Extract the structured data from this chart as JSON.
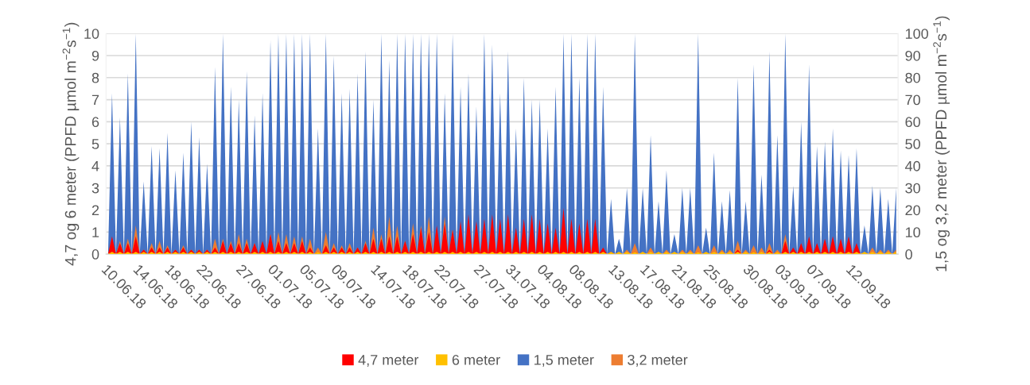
{
  "chart_data": {
    "type": "area",
    "categories": [
      "10.06.18",
      null,
      null,
      null,
      null,
      null,
      null,
      null,
      "14.06.18",
      null,
      null,
      null,
      null,
      null,
      null,
      null,
      "18.06.18",
      null,
      null,
      null,
      null,
      null,
      null,
      null,
      "22.06.18",
      null,
      null,
      null,
      null,
      null,
      null,
      null,
      null,
      null,
      "27.06.18",
      null,
      null,
      null,
      null,
      null,
      null,
      null,
      "01.07.18",
      null,
      null,
      null,
      null,
      null,
      null,
      null,
      "05.07.18",
      null,
      null,
      null,
      null,
      null,
      null,
      null,
      "09.07.18",
      null,
      null,
      null,
      null,
      null,
      null,
      null,
      null,
      null,
      "14.07.18",
      null,
      null,
      null,
      null,
      null,
      null,
      null,
      "18.07.18",
      null,
      null,
      null,
      null,
      null,
      null,
      null,
      "22.07.18",
      null,
      null,
      null,
      null,
      null,
      null,
      null,
      null,
      null,
      "27.07.18",
      null,
      null,
      null,
      null,
      null,
      null,
      null,
      "31.07.18",
      null,
      null,
      null,
      null,
      null,
      null,
      null,
      "04.08.18",
      null,
      null,
      null,
      null,
      null,
      null,
      null,
      "08.08.18",
      null,
      null,
      null,
      null,
      null,
      null,
      null,
      null,
      null,
      "13.08.18",
      null,
      null,
      null,
      null,
      null,
      null,
      null,
      "17.08.18",
      null,
      null,
      null,
      null,
      null,
      null,
      null,
      "21.08.18",
      null,
      null,
      null,
      null,
      null,
      null,
      null,
      "25.08.18",
      null,
      null,
      null,
      null,
      null,
      null,
      null,
      null,
      null,
      "30.08.18",
      null,
      null,
      null,
      null,
      null,
      null,
      null,
      "03.09.18",
      null,
      null,
      null,
      null,
      null,
      null,
      null,
      "07.09.18",
      null,
      null,
      null,
      null,
      null,
      null,
      null,
      null,
      null,
      "12.09.18",
      null,
      null,
      null,
      null,
      null,
      null,
      null,
      null,
      null,
      null,
      null
    ],
    "series": [
      {
        "name": "4,7 meter",
        "color": "#ff0000",
        "axis": "y",
        "values": [
          0,
          0.8,
          0,
          0.5,
          0,
          0.5,
          0,
          0.8,
          0,
          0.2,
          0,
          0.3,
          0,
          0.3,
          0,
          0.3,
          0,
          0.2,
          0,
          0.3,
          0,
          0.2,
          0,
          0.2,
          0,
          0.2,
          0,
          0.3,
          0,
          0.6,
          0,
          0.5,
          0,
          0.5,
          0,
          0.5,
          0,
          0.5,
          0,
          0.6,
          0,
          0.9,
          0,
          0.6,
          0,
          0.5,
          0,
          0.5,
          0,
          0.6,
          0,
          0.3,
          0,
          0.1,
          0,
          0.4,
          0,
          0.3,
          0,
          0.3,
          0,
          0.3,
          0,
          0.3,
          0,
          0.5,
          0,
          0.7,
          0,
          0.7,
          0,
          0.8,
          0,
          0.8,
          0,
          0.6,
          0,
          0.9,
          0,
          1.2,
          0,
          1,
          0,
          1.3,
          0,
          1.4,
          0,
          1.1,
          0,
          1.5,
          0,
          1.8,
          0,
          1.5,
          0,
          1.6,
          0,
          1.8,
          0,
          1.6,
          0,
          1.8,
          0,
          1.2,
          0,
          1.6,
          0,
          1.8,
          0,
          1.6,
          0,
          1.4,
          0,
          1.2,
          0,
          2.1,
          0,
          1.6,
          0,
          1.4,
          0,
          1.6,
          0,
          1.6,
          0,
          0.3,
          0,
          0.1,
          0,
          0,
          0,
          0,
          0,
          0.1,
          0,
          0,
          0,
          0,
          0,
          0,
          0,
          0,
          0,
          0,
          0,
          0,
          0,
          0,
          0,
          0.1,
          0,
          0,
          0,
          0,
          0,
          0,
          0,
          0,
          0,
          0.2,
          0,
          0,
          0,
          0.1,
          0,
          0,
          0,
          0.2,
          0,
          0.1,
          0,
          0.6,
          0,
          0.3,
          0,
          0.5,
          0,
          0.8,
          0,
          0.5,
          0,
          0.7,
          0,
          0.8,
          0,
          0.7,
          0,
          0.8,
          0,
          0.5,
          0,
          0,
          0,
          0,
          0,
          0,
          0,
          0,
          0,
          0
        ]
      },
      {
        "name": "6 meter",
        "color": "#ffc000",
        "axis": "y",
        "values": [
          0,
          0.1,
          0,
          0.1,
          0,
          0.1,
          0,
          0.1,
          0,
          0.1,
          0,
          0.1,
          0,
          0.1,
          0,
          0.1,
          0,
          0.1,
          0,
          0.1,
          0,
          0.1,
          0,
          0.1,
          0,
          0.1,
          0,
          0.1,
          0,
          0.1,
          0,
          0.1,
          0,
          0.1,
          0,
          0.1,
          0,
          0.1,
          0,
          0.1,
          0,
          0.1,
          0,
          0.1,
          0,
          0.1,
          0,
          0.1,
          0,
          0.1,
          0,
          0.1,
          0,
          0.1,
          0,
          0.1,
          0,
          0.1,
          0,
          0.1,
          0,
          0.1,
          0,
          0.1,
          0,
          0.1,
          0,
          0.1,
          0,
          0.1,
          0,
          0.1,
          0,
          0.1,
          0,
          0.1,
          0,
          0.1,
          0,
          0.1,
          0,
          0.1,
          0,
          0.1,
          0,
          0.1,
          0,
          0.1,
          0,
          0.1,
          0,
          0.1,
          0,
          0.1,
          0,
          0.1,
          0,
          0.1,
          0,
          0.1,
          0,
          0.1,
          0,
          0.1,
          0,
          0.1,
          0,
          0.1,
          0,
          0.1,
          0,
          0.1,
          0,
          0.1,
          0,
          0.1,
          0,
          0.1,
          0,
          0.1,
          0,
          0.1,
          0,
          0.1,
          0,
          0.1,
          0,
          0.1,
          0,
          0.1,
          0,
          0.1,
          0,
          0.1,
          0,
          0.1,
          0,
          0.1,
          0,
          0.1,
          0,
          0.1,
          0,
          0.1,
          0,
          0.1,
          0,
          0.1,
          0,
          0.1,
          0,
          0.1,
          0,
          0.1,
          0,
          0.1,
          0,
          0.1,
          0,
          0.1,
          0,
          0.1,
          0,
          0.1,
          0,
          0.1,
          0,
          0.1,
          0,
          0.1,
          0,
          0.1,
          0,
          0.1,
          0,
          0.1,
          0,
          0.1,
          0,
          0.1,
          0,
          0.1,
          0,
          0.1,
          0,
          0.1,
          0,
          0.1,
          0,
          0.1,
          0,
          0.1,
          0,
          0.1,
          0,
          0.1,
          0,
          0.1,
          0,
          0.1
        ]
      },
      {
        "name": "1,5 meter",
        "color": "#4472c4",
        "axis": "y2",
        "values": [
          0,
          73,
          0,
          62,
          0,
          82,
          0,
          100,
          0,
          33,
          0,
          49,
          0,
          48,
          0,
          55,
          0,
          38,
          0,
          46,
          0,
          60,
          0,
          53,
          0,
          41,
          0,
          85,
          0,
          100,
          0,
          76,
          0,
          70,
          0,
          83,
          0,
          63,
          0,
          73,
          0,
          97,
          0,
          100,
          0,
          100,
          0,
          100,
          0,
          100,
          0,
          100,
          0,
          57,
          0,
          100,
          0,
          90,
          0,
          73,
          0,
          75,
          0,
          82,
          0,
          92,
          0,
          70,
          0,
          100,
          0,
          88,
          0,
          100,
          0,
          100,
          0,
          100,
          0,
          100,
          0,
          100,
          0,
          100,
          0,
          73,
          0,
          100,
          0,
          76,
          0,
          82,
          0,
          67,
          0,
          100,
          0,
          95,
          0,
          73,
          0,
          92,
          0,
          57,
          0,
          80,
          0,
          70,
          0,
          70,
          0,
          57,
          0,
          76,
          0,
          100,
          0,
          100,
          0,
          80,
          0,
          100,
          0,
          100,
          0,
          76,
          0,
          25,
          0,
          7,
          0,
          30,
          0,
          100,
          0,
          30,
          0,
          54,
          0,
          24,
          0,
          38,
          0,
          9,
          0,
          30,
          0,
          30,
          0,
          100,
          0,
          12,
          0,
          46,
          0,
          24,
          0,
          29,
          0,
          80,
          0,
          24,
          0,
          86,
          0,
          36,
          0,
          92,
          0,
          54,
          0,
          100,
          0,
          31,
          0,
          60,
          0,
          86,
          0,
          49,
          0,
          51,
          0,
          57,
          0,
          47,
          0,
          45,
          0,
          48,
          0,
          13,
          0,
          31,
          0,
          30,
          0,
          25,
          0,
          30
        ]
      },
      {
        "name": "3,2 meter",
        "color": "#ed7d31",
        "axis": "y2",
        "values": [
          0,
          7,
          0,
          6,
          0,
          7,
          0,
          13,
          0,
          2,
          0,
          5,
          0,
          6,
          0,
          4,
          0,
          2,
          0,
          4,
          0,
          2,
          0,
          2,
          0,
          2,
          0,
          7,
          0,
          7,
          0,
          6,
          0,
          9,
          0,
          7,
          0,
          5,
          0,
          5,
          0,
          9,
          0,
          10,
          0,
          9,
          0,
          8,
          0,
          8,
          0,
          7,
          0,
          3,
          0,
          10,
          0,
          5,
          0,
          4,
          0,
          5,
          0,
          3,
          0,
          6,
          0,
          12,
          0,
          9,
          0,
          17,
          0,
          13,
          0,
          6,
          0,
          14,
          0,
          13,
          0,
          17,
          0,
          7,
          0,
          17,
          0,
          11,
          0,
          12,
          0,
          10,
          0,
          12,
          0,
          13,
          0,
          16,
          0,
          10,
          0,
          6,
          0,
          3,
          0,
          8,
          0,
          6,
          0,
          5,
          0,
          5,
          0,
          6,
          0,
          17,
          0,
          12,
          0,
          8,
          0,
          10,
          0,
          9,
          0,
          2,
          0,
          0,
          0,
          1,
          0,
          2,
          0,
          5,
          0,
          1,
          0,
          3,
          0,
          1,
          0,
          2,
          0,
          1,
          0,
          2,
          0,
          2,
          0,
          4,
          0,
          1,
          0,
          4,
          0,
          2,
          0,
          2,
          0,
          6,
          0,
          2,
          0,
          4,
          0,
          3,
          0,
          5,
          0,
          2,
          0,
          9,
          0,
          2,
          0,
          4,
          0,
          6,
          0,
          3,
          0,
          3,
          0,
          4,
          0,
          3,
          0,
          3,
          0,
          3,
          0,
          1,
          0,
          3,
          0,
          2,
          0,
          2,
          0,
          2
        ]
      }
    ],
    "ylabel": "4,7 og 6 meter (PPFD µmol m$^{−2}$s$^{−1}$)",
    "y2label": "1,5 og 3,2 meter (PPFD µmol m$^{−2}$s$^{−1}$)",
    "ylim": [
      0,
      10
    ],
    "yticks": [
      0,
      1,
      2,
      3,
      4,
      5,
      6,
      7,
      8,
      9,
      10
    ],
    "y2lim": [
      0,
      100
    ],
    "y2ticks": [
      0,
      10,
      20,
      30,
      40,
      50,
      60,
      70,
      80,
      90,
      100
    ],
    "grid": "y",
    "legend": "bottom"
  }
}
